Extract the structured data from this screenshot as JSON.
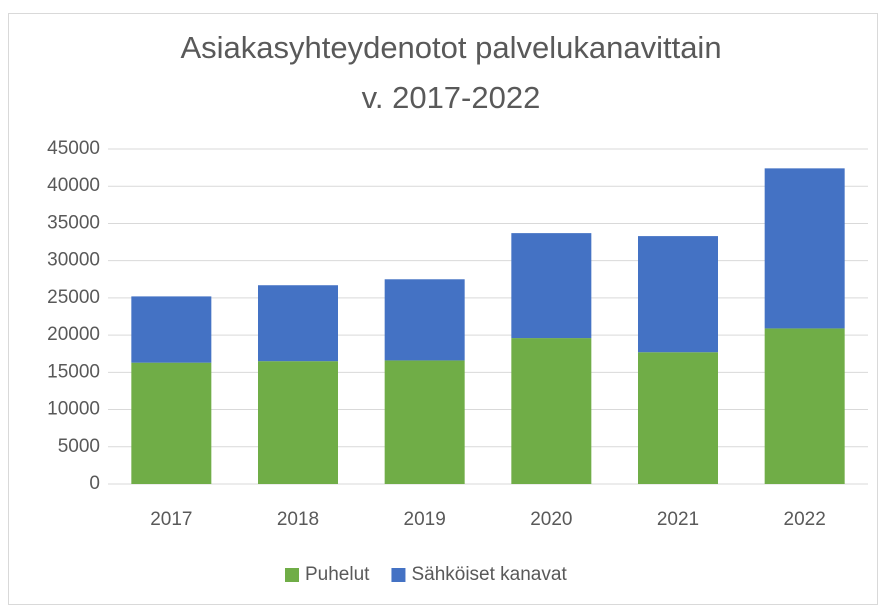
{
  "chart_data": {
    "type": "stacked_bar",
    "title": [
      "Asiakasyhteydenotot palvelukanavittain",
      "v. 2017-2022"
    ],
    "categories": [
      "2017",
      "2018",
      "2019",
      "2020",
      "2021",
      "2022"
    ],
    "series": [
      {
        "name": "Puhelut",
        "color": "#70ad47",
        "values": [
          16300,
          16500,
          16600,
          19600,
          17700,
          20900
        ]
      },
      {
        "name": "Sähköiset kanavat",
        "color": "#4472c4",
        "values": [
          8900,
          10200,
          10900,
          14100,
          15600,
          21500
        ]
      }
    ],
    "ylim": [
      0,
      45000
    ],
    "yticks": [
      0,
      5000,
      10000,
      15000,
      20000,
      25000,
      30000,
      35000,
      40000,
      45000
    ],
    "grid": true,
    "legend": "bottom"
  }
}
